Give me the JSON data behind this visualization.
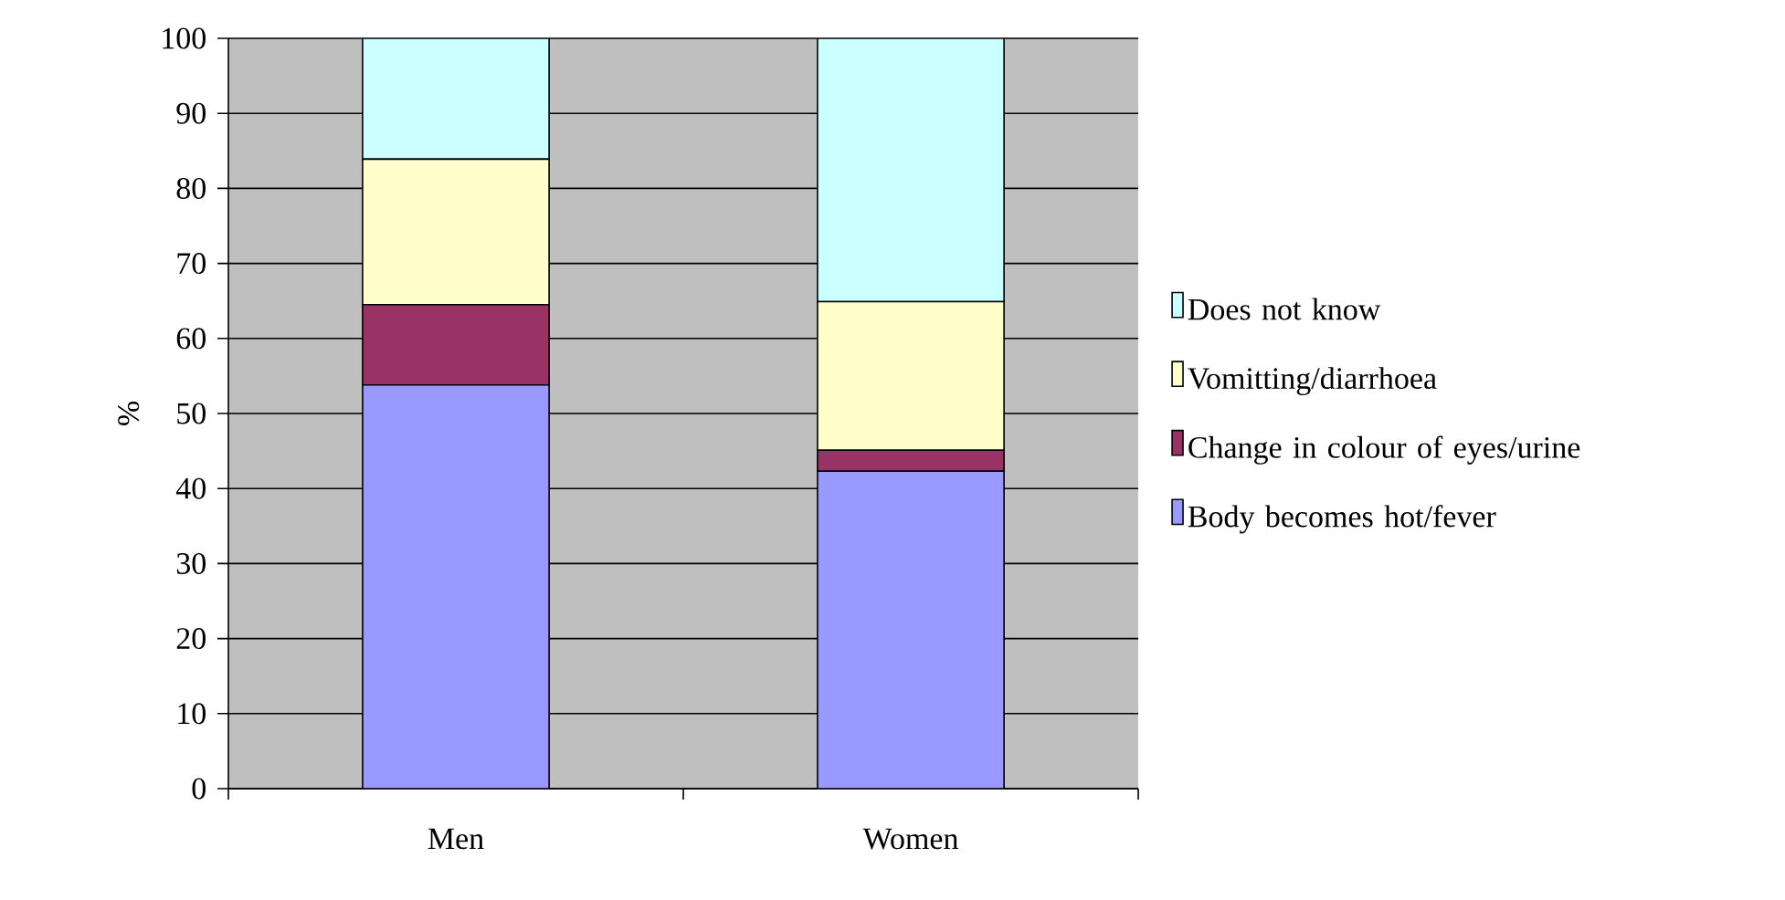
{
  "chart_data": {
    "type": "bar",
    "stacked": true,
    "ylabel": "%",
    "categories": [
      "Men",
      "Women"
    ],
    "series": [
      {
        "name": "Body becomes hot/fever",
        "color": "#9999ff",
        "values": [
          53.8,
          42.3
        ]
      },
      {
        "name": "Change in colour of eyes/urine",
        "color": "#993366",
        "values": [
          10.7,
          2.8
        ]
      },
      {
        "name": "Vomitting/diarrhoea",
        "color": "#ffffcc",
        "values": [
          19.4,
          19.8
        ]
      },
      {
        "name": "Does not know",
        "color": "#ccffff",
        "values": [
          16.1,
          35.1
        ]
      }
    ],
    "ylim": [
      0,
      100
    ],
    "yticks": [
      0,
      10,
      20,
      30,
      40,
      50,
      60,
      70,
      80,
      90,
      100
    ],
    "grid": "y",
    "legend": "right"
  }
}
